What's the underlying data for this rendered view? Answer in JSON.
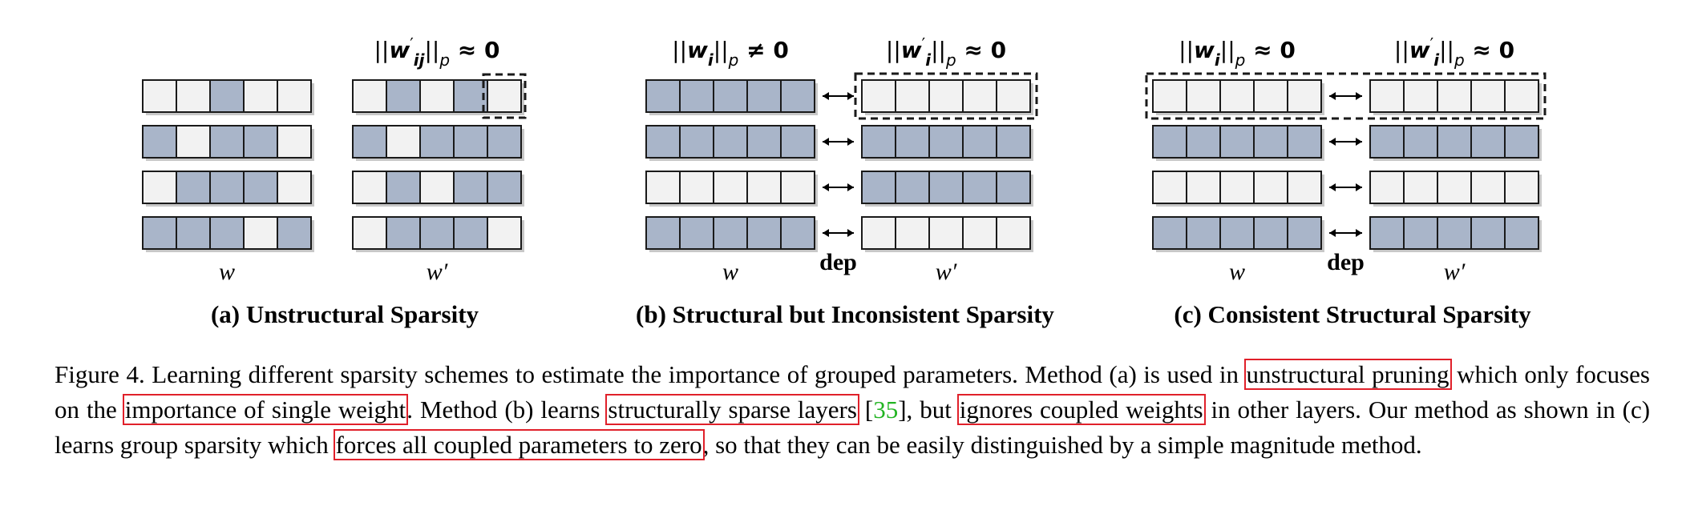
{
  "panels": [
    {
      "id": "a",
      "title": "(a) Unstructural Sparsity",
      "left_label": "w",
      "right_label": "w′",
      "left_formula": "",
      "right_formula_base": "||w",
      "right_formula_sub": "ij",
      "right_formula_tail": "||",
      "right_formula_p": "p",
      "right_formula_rel": "≈ 0",
      "dep_label": "",
      "left_grid": [
        [
          0,
          0,
          1,
          0,
          0
        ],
        [
          1,
          0,
          1,
          1,
          0
        ],
        [
          0,
          1,
          1,
          1,
          0
        ],
        [
          1,
          1,
          1,
          0,
          1
        ]
      ],
      "right_grid": [
        [
          0,
          1,
          0,
          1,
          0
        ],
        [
          1,
          0,
          1,
          1,
          1
        ],
        [
          0,
          1,
          0,
          1,
          1
        ],
        [
          0,
          1,
          1,
          1,
          0
        ]
      ],
      "left_box_rows": [],
      "right_box_rows": [],
      "right_box_cell": [
        0,
        4
      ],
      "arrows": false
    },
    {
      "id": "b",
      "title": "(b) Structural but Inconsistent Sparsity",
      "left_label": "w",
      "right_label": "w′",
      "left_formula": "||w",
      "left_formula_sub": "i",
      "left_formula_p": "p",
      "left_formula_rel": "≠ 0",
      "right_formula_base": "||w",
      "right_formula_sub": "i",
      "right_formula_tail": "||",
      "right_formula_p": "p",
      "right_formula_rel": "≈ 0",
      "dep_label": "dep",
      "left_grid": [
        [
          1,
          1,
          1,
          1,
          1
        ],
        [
          1,
          1,
          1,
          1,
          1
        ],
        [
          0,
          0,
          0,
          0,
          0
        ],
        [
          1,
          1,
          1,
          1,
          1
        ]
      ],
      "right_grid": [
        [
          0,
          0,
          0,
          0,
          0
        ],
        [
          1,
          1,
          1,
          1,
          1
        ],
        [
          1,
          1,
          1,
          1,
          1
        ],
        [
          0,
          0,
          0,
          0,
          0
        ]
      ],
      "left_box_rows": [],
      "right_box_rows": [
        0
      ],
      "arrows": true
    },
    {
      "id": "c",
      "title": "(c) Consistent Structural Sparsity",
      "left_label": "w",
      "right_label": "w′",
      "left_formula": "||w",
      "left_formula_sub": "i",
      "left_formula_p": "p",
      "left_formula_rel": "≈ 0",
      "right_formula_base": "||w",
      "right_formula_sub": "i",
      "right_formula_tail": "||",
      "right_formula_p": "p",
      "right_formula_rel": "≈ 0",
      "dep_label": "dep",
      "left_grid": [
        [
          0,
          0,
          0,
          0,
          0
        ],
        [
          1,
          1,
          1,
          1,
          1
        ],
        [
          0,
          0,
          0,
          0,
          0
        ],
        [
          1,
          1,
          1,
          1,
          1
        ]
      ],
      "right_grid": [
        [
          0,
          0,
          0,
          0,
          0
        ],
        [
          1,
          1,
          1,
          1,
          1
        ],
        [
          0,
          0,
          0,
          0,
          0
        ],
        [
          1,
          1,
          1,
          1,
          1
        ]
      ],
      "joint_box_row": 0,
      "arrows": true
    }
  ],
  "colors": {
    "filled": "#a9b5c9",
    "empty": "#f2f2f2",
    "stroke": "#1a1a1a",
    "highlight": "#e0202a",
    "ref": "#22b422"
  },
  "caption": {
    "t1": "Figure 4. Learning different sparsity schemes to estimate the importance of grouped parameters. Method (a) is used in ",
    "h1": "unstructural pruning",
    "t2": " which only focuses on the ",
    "h2": "importance of single weight",
    "t3": ". Method (b) learns ",
    "h3": "structurally sparse layers",
    "t4": " [",
    "ref": "35",
    "t5": "], but ",
    "h4": "ignores coupled weights",
    "t6": " in other layers.  Our method as shown in (c) learns group sparsity which ",
    "h5": "forces all coupled parameters to zero",
    "t7": ", so that they can be easily distinguished by a simple magnitude method."
  }
}
